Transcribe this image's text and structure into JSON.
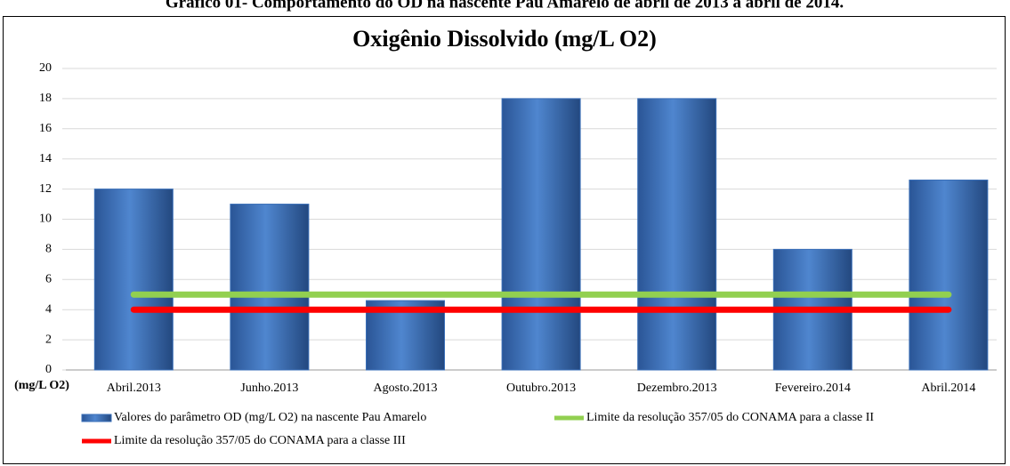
{
  "caption": "Gráfico 01- Comportamento do OD na nascente Pau Amarelo de abril de 2013 a abril de 2014.",
  "chart_data": {
    "type": "bar",
    "title": "Oxigênio Dissolvido (mg/L O2)",
    "y_label": "(mg/L O2)",
    "categories": [
      "Abril.2013",
      "Junho.2013",
      "Agosto.2013",
      "Outubro.2013",
      "Dezembro.2013",
      "Fevereiro.2014",
      "Abril.2014"
    ],
    "series": [
      {
        "name": "Valores do parâmetro OD (mg/L O2) na nascente Pau Amarelo",
        "type": "bar",
        "color": "#3a6fb8",
        "values": [
          12,
          11,
          4.6,
          18,
          18,
          8,
          12.6
        ]
      },
      {
        "name": "Limite da resolução 357/05 do CONAMA para a classe II",
        "type": "line",
        "color": "#92d050",
        "values": [
          5,
          5,
          5,
          5,
          5,
          5,
          5
        ]
      },
      {
        "name": "Limite da resolução 357/05 do CONAMA para a classe III",
        "type": "line",
        "color": "#ff0000",
        "values": [
          4,
          4,
          4,
          4,
          4,
          4,
          4
        ]
      }
    ],
    "ylim": [
      0,
      20
    ],
    "yticks": [
      0,
      2,
      4,
      6,
      8,
      10,
      12,
      14,
      16,
      18,
      20
    ],
    "grid": true
  }
}
